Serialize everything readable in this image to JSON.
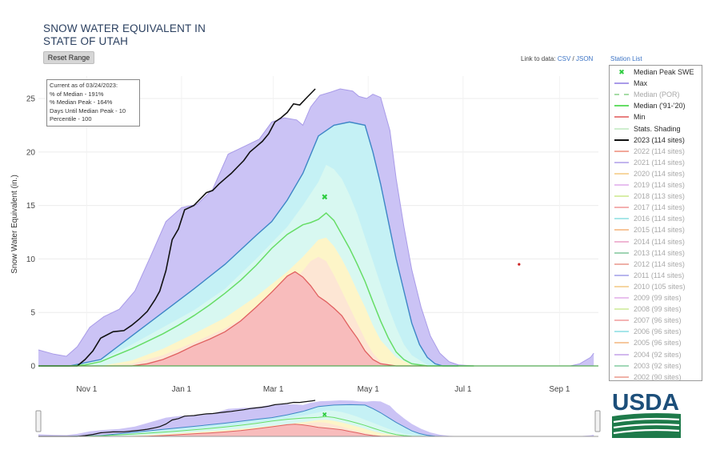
{
  "title_line1": "SNOW WATER EQUIVALENT IN",
  "title_line2": "STATE OF UTAH",
  "reset_button": "Reset Range",
  "links": {
    "prefix": "Link to data:",
    "csv": "CSV",
    "sep": "/",
    "json": "JSON",
    "station_list": "Station List"
  },
  "info": {
    "line1": "Current as of 03/24/2023:",
    "line2": "% of Median - 191%",
    "line3": "% Median Peak - 164%",
    "line4": "Days Until Median Peak - 10",
    "line5": "Percentile - 100"
  },
  "legend": [
    {
      "label": "Median Peak SWE",
      "color": "#2ecc40",
      "kind": "marker",
      "active": true
    },
    {
      "label": "Max",
      "color": "#a99be8",
      "kind": "line",
      "active": true
    },
    {
      "label": "Median (POR)",
      "color": "#a6dca6",
      "kind": "dash",
      "active": false
    },
    {
      "label": "Median ('91-'20)",
      "color": "#66dd66",
      "kind": "line",
      "active": true
    },
    {
      "label": "Min",
      "color": "#e88080",
      "kind": "line",
      "active": true
    },
    {
      "label": "Stats. Shading",
      "color": "#cfeecf",
      "kind": "line",
      "active": true
    },
    {
      "label": "2023 (114 sites)",
      "color": "#111111",
      "kind": "line",
      "active": true
    },
    {
      "label": "2022 (114 sites)",
      "color": "#f2a89a",
      "kind": "line",
      "active": false
    },
    {
      "label": "2021 (114 sites)",
      "color": "#c3b6ee",
      "kind": "line",
      "active": false
    },
    {
      "label": "2020 (114 sites)",
      "color": "#f7d7a0",
      "kind": "line",
      "active": false
    },
    {
      "label": "2019 (114 sites)",
      "color": "#e8c0f0",
      "kind": "line",
      "active": false
    },
    {
      "label": "2018 (113 sites)",
      "color": "#d8eea8",
      "kind": "line",
      "active": false
    },
    {
      "label": "2017 (114 sites)",
      "color": "#f4b0b0",
      "kind": "line",
      "active": false
    },
    {
      "label": "2016 (114 sites)",
      "color": "#a8e6e8",
      "kind": "line",
      "active": false
    },
    {
      "label": "2015 (114 sites)",
      "color": "#f7c69a",
      "kind": "line",
      "active": false
    },
    {
      "label": "2014 (114 sites)",
      "color": "#f0b7d4",
      "kind": "line",
      "active": false
    },
    {
      "label": "2013 (114 sites)",
      "color": "#9fd4b4",
      "kind": "line",
      "active": false
    },
    {
      "label": "2012 (114 sites)",
      "color": "#eeb0a8",
      "kind": "line",
      "active": false
    },
    {
      "label": "2011 (114 sites)",
      "color": "#b8b6ee",
      "kind": "line",
      "active": false
    },
    {
      "label": "2010 (105 sites)",
      "color": "#f5d6a2",
      "kind": "line",
      "active": false
    },
    {
      "label": "2009 (99 sites)",
      "color": "#e9c1ee",
      "kind": "line",
      "active": false
    },
    {
      "label": "2008 (99 sites)",
      "color": "#d9efb0",
      "kind": "line",
      "active": false
    },
    {
      "label": "2007 (96 sites)",
      "color": "#f4b4b4",
      "kind": "line",
      "active": false
    },
    {
      "label": "2006 (96 sites)",
      "color": "#a6e6ea",
      "kind": "line",
      "active": false
    },
    {
      "label": "2005 (96 sites)",
      "color": "#f6c89e",
      "kind": "line",
      "active": false
    },
    {
      "label": "2004 (92 sites)",
      "color": "#d2b8ee",
      "kind": "line",
      "active": false
    },
    {
      "label": "2003 (92 sites)",
      "color": "#a2d8b8",
      "kind": "line",
      "active": false
    },
    {
      "label": "2002 (90 sites)",
      "color": "#f0b2a8",
      "kind": "line",
      "active": false
    }
  ],
  "marker_colors": {
    "latest_point": "#cc2222"
  },
  "logo_text": "USDA",
  "chart_data": {
    "type": "area",
    "ylabel": "Snow Water Equivalent (in.)",
    "ylim": [
      0,
      26.5
    ],
    "yticks": [
      0,
      5,
      10,
      15,
      20,
      25
    ],
    "xticks": [
      "Nov 1",
      "Jan 1",
      "Mar 1",
      "May 1",
      "Jul 1",
      "Sep 1"
    ],
    "x_day_range": [
      0,
      360
    ],
    "xtick_days": [
      31,
      92,
      151,
      212,
      273,
      335
    ],
    "legend_position": "right",
    "series": [
      {
        "name": "Max",
        "color": "#3d86c6",
        "fill": "#cbc3f5",
        "x": [
          0,
          10,
          18,
          25,
          33,
          42,
          52,
          62,
          72,
          82,
          92,
          102,
          112,
          122,
          132,
          142,
          150,
          158,
          166,
          170,
          175,
          181,
          188,
          194,
          202,
          206,
          211,
          215,
          220,
          226,
          230,
          235,
          240,
          246,
          252,
          258,
          264,
          270,
          280,
          300,
          320,
          342,
          348,
          355,
          357
        ],
        "y": [
          1.5,
          1.1,
          0.9,
          1.8,
          3.6,
          4.6,
          5.3,
          7.0,
          10.2,
          13.5,
          14.8,
          15.1,
          16.5,
          19.8,
          20.5,
          21.2,
          22.8,
          23.2,
          23.0,
          22.5,
          24.2,
          25.3,
          25.6,
          25.9,
          25.7,
          25.2,
          25.0,
          25.4,
          25.1,
          22.0,
          17.5,
          13.0,
          9.0,
          5.5,
          2.8,
          1.2,
          0.4,
          0.1,
          0.0,
          0.0,
          0.0,
          0.0,
          0.2,
          0.8,
          1.2
        ]
      },
      {
        "name": "Median Peak SWE",
        "color": "#2ecc40",
        "x": [
          184
        ],
        "y": [
          15.8
        ]
      },
      {
        "name": "Median ('91-'20)",
        "color": "#66dd66",
        "x": [
          0,
          10,
          20,
          30,
          40,
          50,
          60,
          70,
          80,
          90,
          100,
          110,
          120,
          130,
          140,
          150,
          160,
          170,
          175,
          180,
          185,
          190,
          195,
          200,
          205,
          210,
          215,
          220,
          225,
          230,
          235,
          240,
          250,
          260,
          270,
          280
        ],
        "y": [
          0,
          0,
          0,
          0.1,
          0.4,
          1.0,
          1.6,
          2.3,
          3.0,
          3.8,
          4.7,
          5.7,
          6.8,
          8.0,
          9.4,
          11.0,
          12.3,
          13.2,
          13.4,
          13.7,
          14.3,
          13.6,
          12.3,
          11.0,
          9.5,
          7.9,
          6.0,
          4.2,
          2.6,
          1.3,
          0.6,
          0.2,
          0.0,
          0.0,
          0.0,
          0.0
        ]
      },
      {
        "name": "Min",
        "color": "#e88080",
        "x": [
          0,
          20,
          40,
          60,
          70,
          80,
          90,
          100,
          110,
          120,
          130,
          140,
          150,
          160,
          165,
          170,
          175,
          180,
          185,
          190,
          195,
          200,
          205,
          210,
          215,
          220,
          230,
          240,
          250
        ],
        "y": [
          0,
          0,
          0,
          0,
          0.2,
          0.6,
          1.2,
          1.9,
          2.5,
          3.2,
          4.2,
          5.5,
          6.9,
          8.4,
          8.8,
          8.3,
          7.5,
          6.5,
          6.0,
          5.4,
          4.7,
          3.6,
          2.6,
          1.4,
          0.6,
          0.2,
          0.0,
          0.0,
          0.0
        ]
      },
      {
        "name": "2023 (114 sites)",
        "color": "#111111",
        "x": [
          0,
          10,
          20,
          25,
          30,
          35,
          40,
          48,
          55,
          60,
          65,
          70,
          75,
          78,
          82,
          86,
          90,
          94,
          97,
          100,
          104,
          108,
          112,
          116,
          120,
          124,
          128,
          132,
          136,
          140,
          144,
          148,
          152,
          156,
          160,
          164,
          168,
          172,
          176,
          178
        ],
        "y": [
          0,
          0,
          0,
          0,
          0.6,
          1.4,
          2.6,
          3.2,
          3.3,
          3.8,
          4.4,
          5.1,
          6.2,
          7.0,
          8.9,
          11.8,
          12.8,
          14.6,
          14.8,
          15.0,
          15.6,
          16.2,
          16.4,
          17.0,
          17.5,
          18.0,
          18.6,
          19.2,
          20.0,
          20.5,
          21.0,
          21.7,
          22.8,
          23.2,
          23.7,
          24.5,
          24.4,
          25.0,
          25.6,
          25.9
        ]
      }
    ],
    "bands": [
      {
        "name": "Stats. Shading 90th percentile",
        "color": "#c5f1f5",
        "x": [
          0,
          20,
          40,
          60,
          80,
          100,
          120,
          140,
          150,
          160,
          170,
          180,
          190,
          200,
          210,
          215,
          220,
          225,
          230,
          235,
          240,
          245,
          250,
          255,
          260,
          270
        ],
        "y": [
          0,
          0,
          0.6,
          2.8,
          5.0,
          7.2,
          9.5,
          12.2,
          13.5,
          15.5,
          18.0,
          21.5,
          22.5,
          22.8,
          22.5,
          20.0,
          17.0,
          13.5,
          10.0,
          7.0,
          4.0,
          2.0,
          0.8,
          0.2,
          0.0,
          0.0
        ]
      },
      {
        "name": "Stats. Shading 70th percentile",
        "color": "#d8f8f1",
        "x": [
          0,
          20,
          40,
          60,
          80,
          100,
          120,
          140,
          160,
          170,
          180,
          185,
          190,
          195,
          200,
          205,
          210,
          215,
          220,
          225,
          230,
          235,
          240,
          250,
          260
        ],
        "y": [
          0,
          0,
          0.5,
          2.0,
          3.6,
          5.2,
          7.2,
          10.0,
          13.0,
          15.0,
          17.2,
          18.8,
          18.4,
          17.5,
          16.0,
          14.2,
          12.0,
          9.8,
          7.6,
          5.5,
          3.6,
          2.0,
          1.0,
          0.1,
          0.0
        ]
      },
      {
        "name": "Stats. Shading 30th percentile",
        "color": "#fdf5c8",
        "x": [
          0,
          20,
          40,
          60,
          80,
          100,
          120,
          140,
          160,
          170,
          180,
          185,
          190,
          195,
          200,
          205,
          210,
          215,
          220,
          230,
          240,
          250
        ],
        "y": [
          0,
          0,
          0,
          0.5,
          1.6,
          3.0,
          4.5,
          6.5,
          8.8,
          10.2,
          11.8,
          12.0,
          11.2,
          10.0,
          8.6,
          7.0,
          5.5,
          3.8,
          2.4,
          0.8,
          0.1,
          0.0
        ]
      },
      {
        "name": "Stats. Shading 10th percentile",
        "color": "#fde6d4",
        "x": [
          0,
          20,
          40,
          60,
          80,
          100,
          120,
          140,
          160,
          170,
          175,
          180,
          185,
          190,
          195,
          200,
          205,
          210,
          215,
          220,
          230,
          240
        ],
        "y": [
          0,
          0,
          0,
          0.2,
          1.0,
          2.2,
          3.5,
          5.2,
          7.3,
          8.9,
          9.8,
          10.2,
          9.8,
          8.5,
          7.0,
          5.5,
          4.0,
          2.5,
          1.2,
          0.4,
          0.0,
          0.0
        ]
      }
    ],
    "annotations": [
      {
        "x": 309,
        "y": 9.5,
        "note": "latest-point marker"
      }
    ]
  }
}
